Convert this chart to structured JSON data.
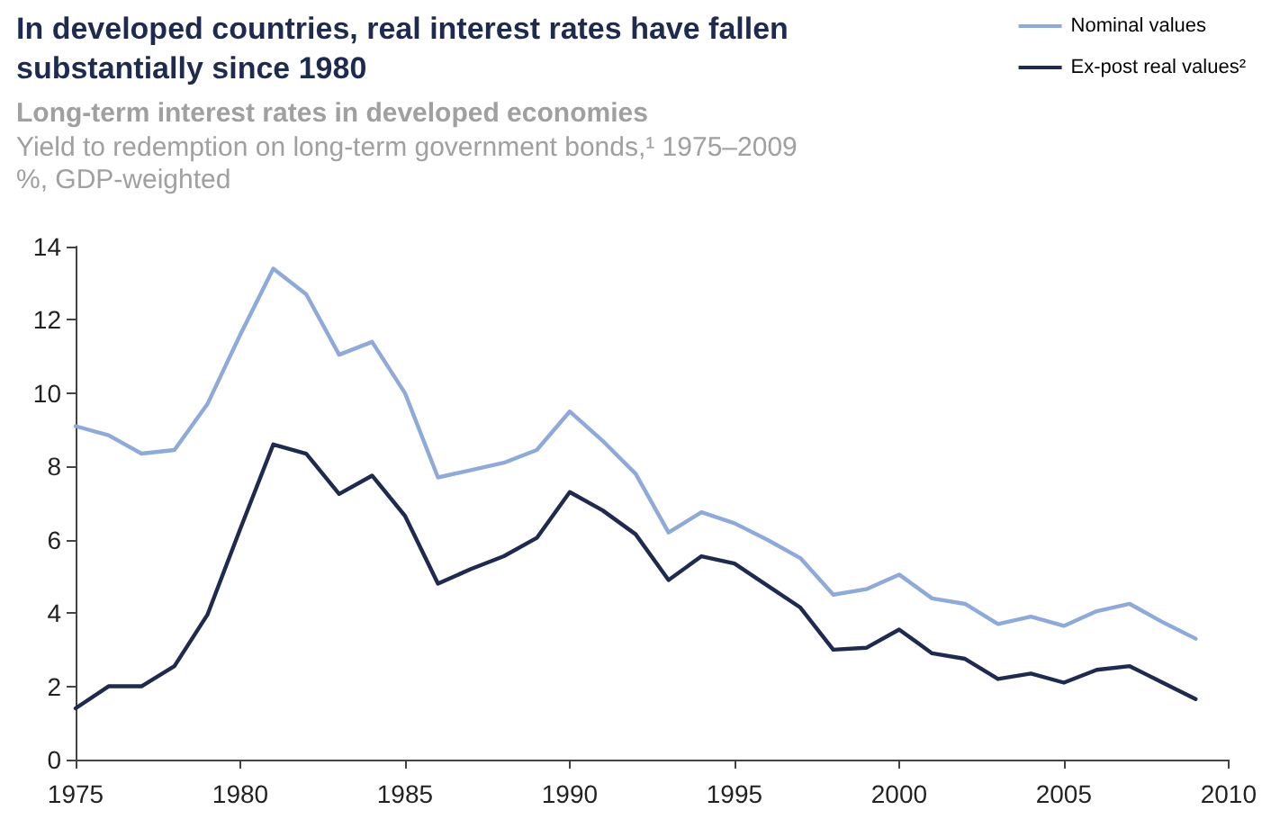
{
  "chart_data": {
    "type": "line",
    "title": "In developed countries, real interest rates have fallen\nsubstantially since 1980",
    "subtitle": "Long-term interest rates in developed economies\nYield to redemption on long-term government bonds,¹ 1975–2009\n%, GDP-weighted",
    "x": [
      1975,
      1976,
      1977,
      1978,
      1979,
      1980,
      1981,
      1982,
      1983,
      1984,
      1985,
      1986,
      1987,
      1988,
      1989,
      1990,
      1991,
      1992,
      1993,
      1994,
      1995,
      1996,
      1997,
      1998,
      1999,
      2000,
      2001,
      2002,
      2003,
      2004,
      2005,
      2006,
      2007,
      2008,
      2009
    ],
    "series": [
      {
        "name": "Nominal values",
        "color": "#8fa9d9",
        "values": [
          9.1,
          8.85,
          8.35,
          8.45,
          9.7,
          11.6,
          13.4,
          12.7,
          11.05,
          11.4,
          10.0,
          7.7,
          7.9,
          8.1,
          8.45,
          9.5,
          8.7,
          7.8,
          6.2,
          6.75,
          6.45,
          6.0,
          5.5,
          4.5,
          4.65,
          5.05,
          4.4,
          4.25,
          3.7,
          3.9,
          3.65,
          4.05,
          4.25,
          3.75,
          3.3
        ]
      },
      {
        "name": "Ex-post real values²",
        "color": "#1f2a4f",
        "values": [
          1.4,
          2.0,
          2.0,
          2.55,
          3.95,
          6.3,
          8.6,
          8.35,
          7.25,
          7.75,
          6.65,
          4.8,
          5.2,
          5.55,
          6.05,
          7.3,
          6.8,
          6.15,
          4.9,
          5.55,
          5.35,
          4.75,
          4.15,
          3.0,
          3.05,
          3.55,
          2.9,
          2.75,
          2.2,
          2.35,
          2.1,
          2.45,
          2.55,
          2.1,
          1.65
        ]
      }
    ],
    "xlim": [
      1975,
      2010
    ],
    "xticks": [
      1975,
      1980,
      1985,
      1990,
      1995,
      2000,
      2005,
      2010
    ],
    "ylim": [
      0,
      14
    ],
    "yticks": [
      0,
      2,
      4,
      6,
      8,
      10,
      12,
      14
    ],
    "grid": false,
    "legend": "top right",
    "marker": "none",
    "line_style": "solid"
  }
}
